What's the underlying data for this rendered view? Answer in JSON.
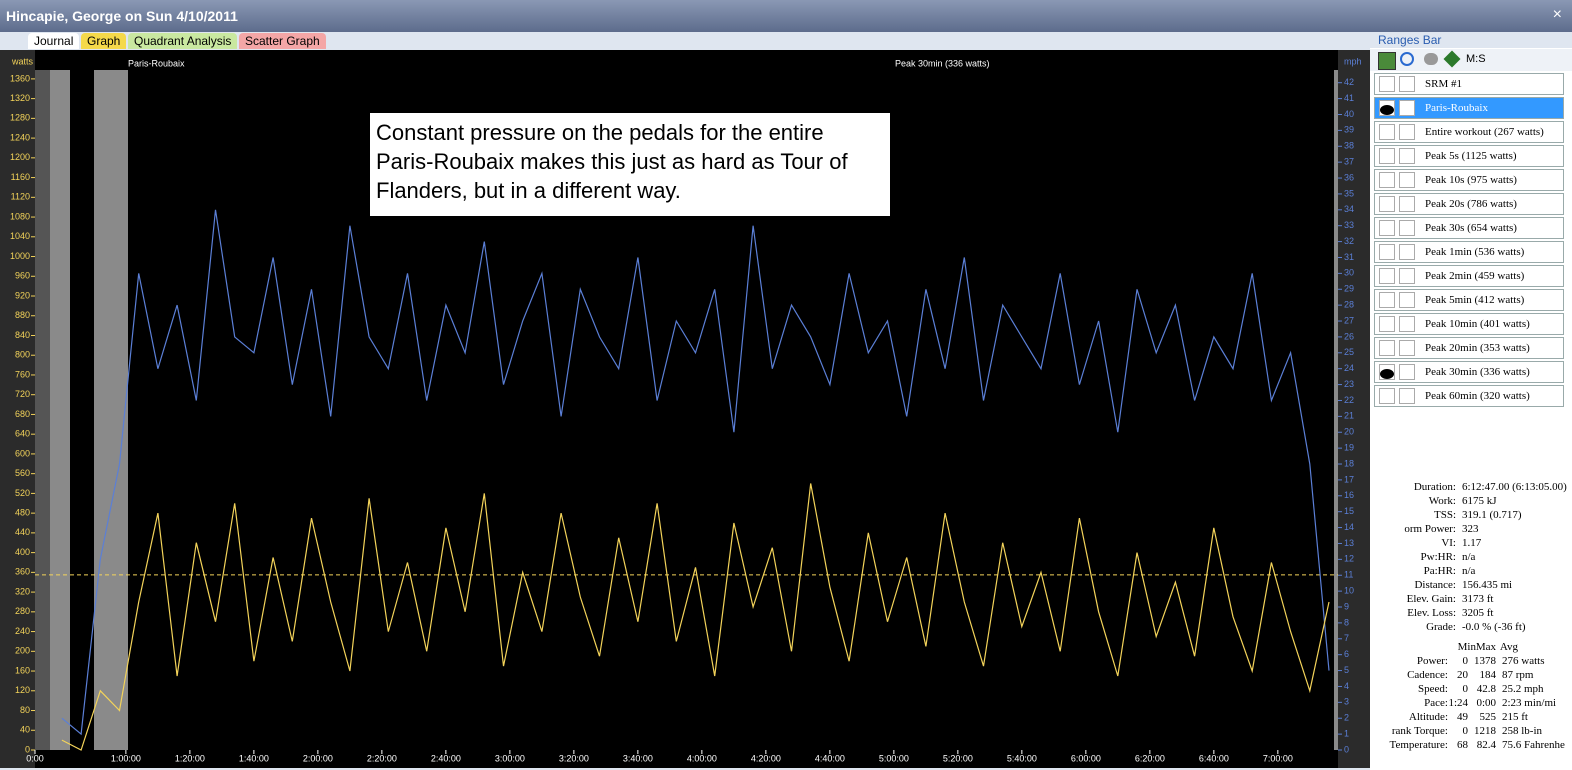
{
  "window_title": "Hincapie, George on Sun 4/10/2011",
  "close": "×",
  "tabs": [
    {
      "label": "Journal",
      "color": "#ffffff"
    },
    {
      "label": "Graph",
      "color": "#f5d94a"
    },
    {
      "label": "Quadrant Analysis",
      "color": "#c9e8a0"
    },
    {
      "label": "Scatter Graph",
      "color": "#f4a6a6"
    }
  ],
  "chart_data": {
    "type": "line",
    "y_label": "watts",
    "y2_label": "mph",
    "plot_labels": [
      "Paris-Roubaix",
      "Peak 30min (336 watts)"
    ],
    "annotation": "Constant pressure on the pedals for the entire Paris-Roubaix makes this just as hard as Tour of Flanders, but in a different way.",
    "x": [
      40,
      46,
      52,
      58,
      64,
      70,
      76,
      82,
      88,
      94,
      100,
      106,
      112,
      118,
      124,
      130,
      136,
      142,
      148,
      154,
      160,
      166,
      172,
      178,
      184,
      190,
      196,
      202,
      208,
      214,
      220,
      226,
      232,
      238,
      244,
      250,
      256,
      262,
      268,
      274,
      280,
      286,
      292,
      298,
      304,
      310,
      316,
      322,
      328,
      334,
      340,
      346,
      352,
      358,
      364,
      370,
      376,
      382,
      388,
      394,
      400,
      406,
      412,
      418,
      424,
      430,
      436
    ],
    "series": [
      {
        "name": "Power",
        "color": "#f3d35a",
        "values": [
          20,
          0,
          120,
          80,
          300,
          480,
          150,
          420,
          260,
          500,
          180,
          390,
          220,
          470,
          300,
          160,
          510,
          240,
          380,
          200,
          450,
          280,
          520,
          170,
          360,
          240,
          480,
          310,
          190,
          430,
          260,
          500,
          220,
          370,
          150,
          460,
          290,
          410,
          200,
          540,
          330,
          180,
          440,
          260,
          390,
          210,
          480,
          300,
          170,
          420,
          250,
          360,
          200,
          470,
          280,
          150,
          400,
          230,
          340,
          190,
          450,
          270,
          160,
          380,
          240,
          120,
          300
        ]
      },
      {
        "name": "Speed",
        "color": "#5b7fd6",
        "axis": "y2",
        "values": [
          2,
          1,
          12,
          18,
          30,
          24,
          28,
          22,
          34,
          26,
          25,
          31,
          23,
          29,
          21,
          33,
          26,
          24,
          30,
          22,
          28,
          25,
          32,
          23,
          27,
          30,
          21,
          29,
          26,
          24,
          31,
          22,
          27,
          25,
          29,
          20,
          33,
          24,
          28,
          26,
          23,
          30,
          25,
          27,
          21,
          29,
          24,
          31,
          22,
          28,
          26,
          24,
          30,
          23,
          27,
          20,
          29,
          25,
          28,
          22,
          26,
          24,
          30,
          22,
          25,
          18,
          5
        ]
      }
    ],
    "reference_line": 355,
    "xlim": [
      31.6,
      438.8
    ],
    "xticks": [
      {
        "value": 31.6,
        "label": "0:00"
      },
      {
        "value": 60,
        "label": "1:00:00"
      },
      {
        "value": 80,
        "label": "1:20:00"
      },
      {
        "value": 100,
        "label": "1:40:00"
      },
      {
        "value": 120,
        "label": "2:00:00"
      },
      {
        "value": 140,
        "label": "2:20:00"
      },
      {
        "value": 160,
        "label": "2:40:00"
      },
      {
        "value": 180,
        "label": "3:00:00"
      },
      {
        "value": 200,
        "label": "3:20:00"
      },
      {
        "value": 220,
        "label": "3:40:00"
      },
      {
        "value": 240,
        "label": "4:00:00"
      },
      {
        "value": 260,
        "label": "4:20:00"
      },
      {
        "value": 280,
        "label": "4:40:00"
      },
      {
        "value": 300,
        "label": "5:00:00"
      },
      {
        "value": 320,
        "label": "5:20:00"
      },
      {
        "value": 340,
        "label": "5:40:00"
      },
      {
        "value": 360,
        "label": "6:00:00"
      },
      {
        "value": 380,
        "label": "6:20:00"
      },
      {
        "value": 400,
        "label": "6:40:00"
      },
      {
        "value": 420,
        "label": "7:00:00"
      }
    ],
    "ylim": [
      0,
      1378
    ],
    "yticks": [
      0,
      40,
      80,
      120,
      160,
      200,
      240,
      280,
      320,
      360,
      400,
      440,
      480,
      520,
      560,
      600,
      640,
      680,
      720,
      760,
      800,
      840,
      880,
      920,
      960,
      1000,
      1040,
      1080,
      1120,
      1160,
      1200,
      1240,
      1280,
      1320,
      1360
    ],
    "y2lim": [
      0,
      42.8
    ],
    "y2ticks": [
      0,
      1,
      2,
      3,
      4,
      5,
      6,
      7,
      8,
      9,
      10,
      11,
      12,
      13,
      14,
      15,
      16,
      17,
      18,
      19,
      20,
      21,
      22,
      23,
      24,
      25,
      26,
      27,
      28,
      29,
      30,
      31,
      32,
      33,
      34,
      35,
      36,
      37,
      38,
      39,
      40,
      41,
      42
    ]
  },
  "ranges_bar": {
    "title": "Ranges Bar",
    "mode": "M:S",
    "rows": [
      {
        "label": "SRM #1",
        "visible": false,
        "selected": false
      },
      {
        "label": "Paris-Roubaix",
        "visible": true,
        "selected": true
      },
      {
        "label": "Entire workout (267 watts)",
        "visible": false,
        "selected": false
      },
      {
        "label": "Peak 5s (1125 watts)",
        "visible": false,
        "selected": false
      },
      {
        "label": "Peak 10s (975 watts)",
        "visible": false,
        "selected": false
      },
      {
        "label": "Peak 20s (786 watts)",
        "visible": false,
        "selected": false
      },
      {
        "label": "Peak 30s (654 watts)",
        "visible": false,
        "selected": false
      },
      {
        "label": "Peak 1min (536 watts)",
        "visible": false,
        "selected": false
      },
      {
        "label": "Peak 2min (459 watts)",
        "visible": false,
        "selected": false
      },
      {
        "label": "Peak 5min (412 watts)",
        "visible": false,
        "selected": false
      },
      {
        "label": "Peak 10min (401 watts)",
        "visible": false,
        "selected": false
      },
      {
        "label": "Peak 20min (353 watts)",
        "visible": false,
        "selected": false
      },
      {
        "label": "Peak 30min (336 watts)",
        "visible": true,
        "selected": false
      },
      {
        "label": "Peak 60min (320 watts)",
        "visible": false,
        "selected": false
      }
    ]
  },
  "summary": [
    {
      "label": "Duration:",
      "value": "6:12:47.00 (6:13:05.00)"
    },
    {
      "label": "Work:",
      "value": "6175 kJ"
    },
    {
      "label": "TSS:",
      "value": "319.1 (0.717)"
    },
    {
      "label": "orm Power:",
      "value": "323"
    },
    {
      "label": "VI:",
      "value": "1.17"
    },
    {
      "label": "Pw:HR:",
      "value": "n/a"
    },
    {
      "label": "Pa:HR:",
      "value": "n/a"
    },
    {
      "label": "Distance:",
      "value": "156.435 mi"
    },
    {
      "label": "Elev. Gain:",
      "value": "3173 ft"
    },
    {
      "label": "Elev. Loss:",
      "value": "3205 ft"
    },
    {
      "label": "Grade:",
      "value": "-0.0 %  (-36 ft)"
    }
  ],
  "stats_table": {
    "header": [
      "Min",
      "Max",
      "Avg"
    ],
    "rows": [
      [
        "Power:",
        "0",
        "1378",
        "276 watts"
      ],
      [
        "Cadence:",
        "20",
        "184",
        "87 rpm"
      ],
      [
        "Speed:",
        "0",
        "42.8",
        "25.2 mph"
      ],
      [
        "Pace:",
        "1:24",
        "0:00",
        "2:23 min/mi"
      ],
      [
        "Altitude:",
        "49",
        "525",
        "215 ft"
      ],
      [
        "rank Torque:",
        "0",
        "1218",
        "258 lb-in"
      ],
      [
        "Temperature:",
        "68",
        "82.4",
        "75.6 Fahrenhe"
      ]
    ]
  }
}
